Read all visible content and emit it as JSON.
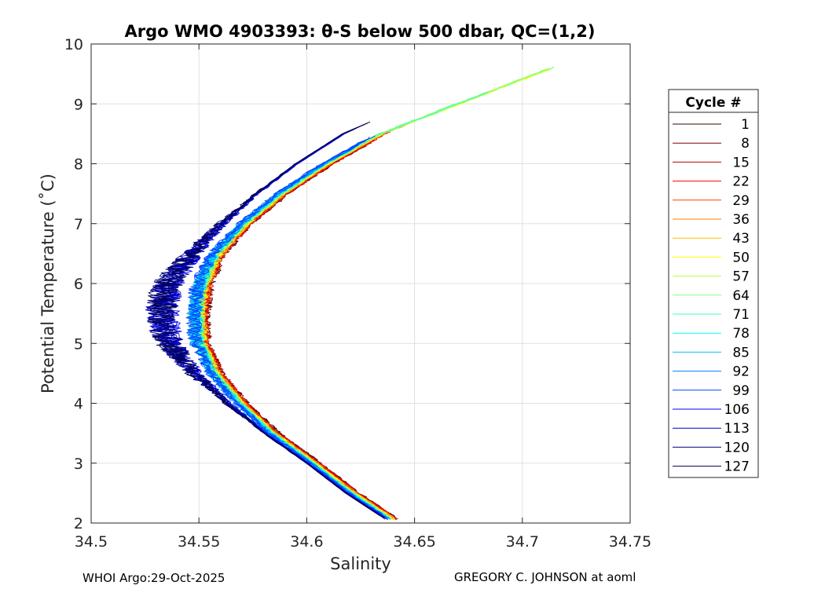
{
  "chart_data": {
    "type": "line",
    "title": "Argo WMO 4903393: θ-S below 500 dbar,  QC=(1,2)",
    "xlabel": "Salinity",
    "ylabel": "Potential Temperature (˚C)",
    "xlim": [
      34.5,
      34.75
    ],
    "ylim": [
      2,
      10
    ],
    "xticks": [
      34.5,
      34.55,
      34.6,
      34.65,
      34.7,
      34.75
    ],
    "xtick_labels": [
      "34.5",
      "34.55",
      "34.6",
      "34.65",
      "34.7",
      "34.75"
    ],
    "yticks": [
      2,
      3,
      4,
      5,
      6,
      7,
      8,
      9,
      10
    ],
    "ytick_labels": [
      "2",
      "3",
      "4",
      "5",
      "6",
      "7",
      "8",
      "9",
      "10"
    ],
    "grid": true,
    "legend": {
      "title": "Cycle #",
      "position": "right-outside",
      "entries": [
        "1",
        "8",
        "15",
        "22",
        "29",
        "36",
        "43",
        "50",
        "57",
        "64",
        "71",
        "78",
        "85",
        "92",
        "99",
        "106",
        "113",
        "120",
        "127"
      ],
      "colors": [
        "#3c0000",
        "#800000",
        "#bf0000",
        "#ff0000",
        "#ff4000",
        "#ff8000",
        "#ffbf00",
        "#ffff00",
        "#bfff40",
        "#80ff80",
        "#40ffbf",
        "#00ffff",
        "#00bfff",
        "#0080ff",
        "#0040ff",
        "#0000ff",
        "#0000bf",
        "#000080",
        "#00004a"
      ]
    },
    "series_mean_profile": {
      "theta": [
        2.05,
        2.5,
        3.0,
        3.5,
        4.0,
        4.5,
        5.0,
        5.5,
        6.0,
        6.5,
        7.0,
        7.5,
        8.0,
        8.5,
        8.75
      ],
      "salinity": [
        34.64,
        34.621,
        34.603,
        34.584,
        34.569,
        34.557,
        34.55,
        34.549,
        34.551,
        34.558,
        34.571,
        34.588,
        34.609,
        34.634,
        34.652
      ]
    },
    "footer_left": "WHOI Argo:29-Oct-2025",
    "footer_right": "GREGORY C. JOHNSON at aoml"
  },
  "colors": {
    "axes": "#262626",
    "grid": "#e0e0e0",
    "background": "#ffffff"
  }
}
